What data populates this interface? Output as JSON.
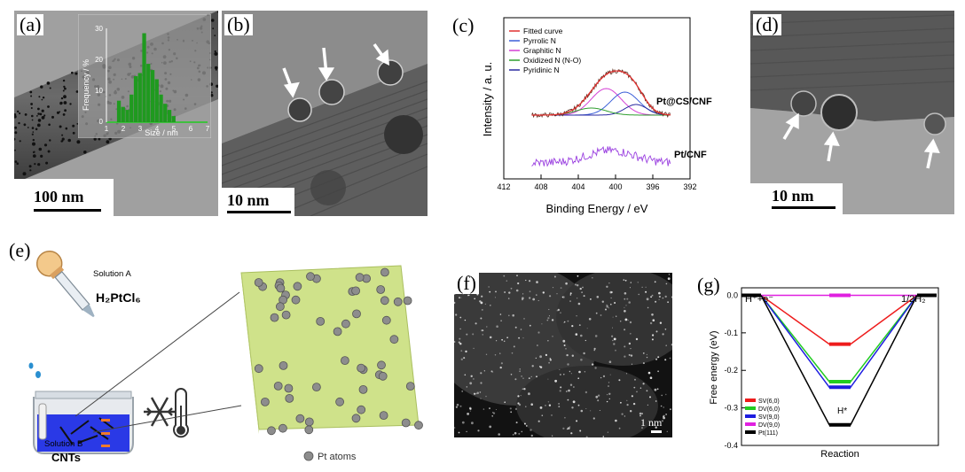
{
  "panels": {
    "a": {
      "label": "(a)",
      "scale": "100 nm",
      "inset": {
        "ylabel": "Frequency / %",
        "xlabel": "Size / nm",
        "yticks": [
          "0",
          "10",
          "20",
          "30"
        ],
        "xticks": [
          "1",
          "2",
          "3",
          "4",
          "5",
          "6",
          "7"
        ]
      }
    },
    "b": {
      "label": "(b)",
      "scale": "10 nm"
    },
    "c": {
      "label": "(c)",
      "legend": [
        "Fitted curve",
        "Pyrrolic N",
        "Graphitic N",
        "Oxidized N (N-O)",
        "Pyridinic N"
      ],
      "sample_top": "Pt@CS/CNF",
      "sample_bottom": "Pt/CNF",
      "ylabel": "Intensity / a. u.",
      "xlabel": "Binding Energy / eV",
      "xticks": [
        "412",
        "408",
        "404",
        "400",
        "396",
        "392"
      ]
    },
    "d": {
      "label": "(d)",
      "scale": "10 nm"
    },
    "e": {
      "label": "(e)",
      "solution_a": "Solution A",
      "reagent": "H₂PtCl₆",
      "solution_b": "Solution B",
      "cnts": "CNTs",
      "pt_atoms": "Pt atoms"
    },
    "f": {
      "label": "(f)",
      "scale": "1 nm"
    },
    "g": {
      "label": "(g)",
      "start_label": "H⁺+e⁻",
      "end_label": "1/2H₂",
      "intermediate": "H*",
      "ylabel": "Free energy (eV)",
      "xlabel": "Reaction",
      "yticks": [
        "0.0",
        "-0.1",
        "-0.2",
        "-0.3",
        "-0.4"
      ]
    }
  },
  "chart_data": [
    {
      "type": "bar",
      "panel": "a-inset",
      "xlabel": "Size / nm",
      "ylabel": "Frequency / %",
      "xlim": [
        0,
        7
      ],
      "ylim": [
        0,
        32
      ],
      "categories": [
        1.75,
        2.0,
        2.25,
        2.5,
        2.75,
        3.0,
        3.25,
        3.5,
        3.75,
        4.0,
        4.25,
        4.5,
        4.75,
        5.0
      ],
      "values": [
        7,
        5,
        4,
        9,
        15,
        16,
        29,
        19,
        17,
        14,
        9,
        6,
        4,
        2
      ],
      "colors": {
        "bar": "#1f9a1f"
      }
    },
    {
      "type": "line",
      "panel": "c",
      "xlabel": "Binding Energy / eV",
      "ylabel": "Intensity / a. u.",
      "xlim": [
        412,
        392
      ],
      "series": [
        {
          "name": "Fitted curve",
          "color": "#e03030"
        },
        {
          "name": "Pyrrolic N",
          "color": "#3a5ed8"
        },
        {
          "name": "Graphitic N",
          "color": "#d43fd4"
        },
        {
          "name": "Oxidized N (N-O)",
          "color": "#2e9e2e"
        },
        {
          "name": "Pyridinic N",
          "color": "#2a2aa0"
        }
      ],
      "samples": [
        "Pt@CS/CNF",
        "Pt/CNF"
      ]
    },
    {
      "type": "line",
      "panel": "g",
      "xlabel": "Reaction",
      "ylabel": "Free energy (eV)",
      "ylim": [
        -0.4,
        0.02
      ],
      "x": [
        "H⁺+e⁻",
        "H*",
        "1/2H₂"
      ],
      "series": [
        {
          "name": "SV(6,0)",
          "color": "#ee1c1c",
          "values": [
            0,
            -0.13,
            0
          ]
        },
        {
          "name": "DV(6,0)",
          "color": "#22cc22",
          "values": [
            0,
            -0.23,
            0
          ]
        },
        {
          "name": "SV(9,0)",
          "color": "#1d1de0",
          "values": [
            0,
            -0.245,
            0
          ]
        },
        {
          "name": "DV(9,0)",
          "color": "#e020e0",
          "values": [
            0,
            0.0,
            0
          ]
        },
        {
          "name": "Pt(111)",
          "color": "#000000",
          "values": [
            0,
            -0.345,
            0
          ]
        }
      ]
    }
  ]
}
